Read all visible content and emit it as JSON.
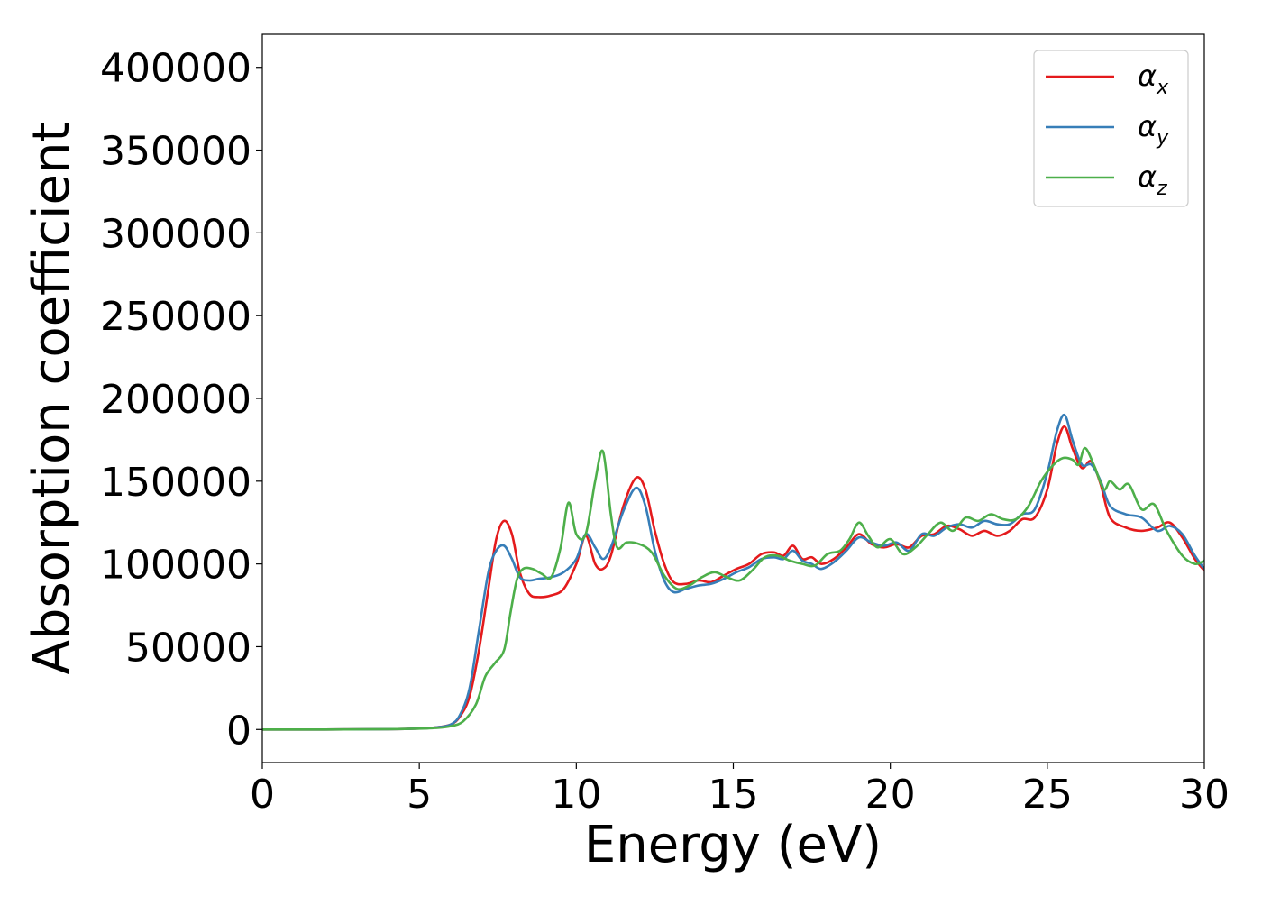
{
  "chart_data": {
    "type": "line",
    "xlabel": "Energy (eV)",
    "ylabel": "Absorption coefficient",
    "xlim": [
      0,
      30
    ],
    "ylim": [
      -20000,
      420000
    ],
    "xticks": [
      0,
      5,
      10,
      15,
      20,
      25,
      30
    ],
    "yticks": [
      0,
      50000,
      100000,
      150000,
      200000,
      250000,
      300000,
      350000,
      400000
    ],
    "grid": false,
    "legend_position": "top-right",
    "series": [
      {
        "name": "α",
        "subscript": "x",
        "color": "#e41a1c",
        "x": [
          0,
          2,
          4,
          5,
          5.5,
          6,
          6.3,
          6.6,
          6.9,
          7.2,
          7.45,
          7.7,
          7.95,
          8.2,
          8.5,
          8.8,
          9.2,
          9.6,
          10.0,
          10.3,
          10.6,
          10.85,
          11.1,
          11.5,
          11.9,
          12.2,
          12.5,
          12.8,
          13.1,
          13.5,
          13.9,
          14.3,
          14.7,
          15.1,
          15.5,
          15.9,
          16.3,
          16.6,
          16.9,
          17.2,
          17.5,
          17.8,
          18.2,
          18.6,
          19.0,
          19.4,
          19.8,
          20.2,
          20.6,
          21.0,
          21.4,
          21.8,
          22.2,
          22.6,
          23.0,
          23.4,
          23.8,
          24.2,
          24.6,
          25.0,
          25.3,
          25.55,
          25.8,
          26.1,
          26.4,
          26.7,
          27.0,
          27.5,
          28.0,
          28.5,
          28.9,
          29.3,
          29.7,
          30.0
        ],
        "y": [
          0,
          0,
          200,
          600,
          1200,
          3000,
          8000,
          20000,
          48000,
          85000,
          115000,
          126000,
          118000,
          95000,
          82000,
          80000,
          81000,
          85000,
          100000,
          117000,
          100000,
          97000,
          105000,
          135000,
          152000,
          145000,
          120000,
          100000,
          89000,
          88000,
          90000,
          89000,
          93000,
          97000,
          100000,
          106000,
          107000,
          105000,
          111000,
          103000,
          104000,
          100000,
          103000,
          110000,
          118000,
          112000,
          110000,
          112000,
          110000,
          117000,
          118000,
          123000,
          121000,
          117000,
          120000,
          117000,
          120000,
          127000,
          128000,
          145000,
          172000,
          183000,
          170000,
          158000,
          162000,
          148000,
          128000,
          122000,
          120000,
          122000,
          125000,
          116000,
          103000,
          96000
        ]
      },
      {
        "name": "α",
        "subscript": "y",
        "color": "#377eb8",
        "x": [
          0,
          2,
          4,
          5,
          5.5,
          6,
          6.3,
          6.6,
          6.9,
          7.2,
          7.45,
          7.7,
          7.95,
          8.2,
          8.5,
          8.8,
          9.2,
          9.6,
          10.0,
          10.3,
          10.6,
          10.85,
          11.1,
          11.5,
          11.9,
          12.2,
          12.5,
          12.8,
          13.1,
          13.5,
          13.9,
          14.3,
          14.7,
          15.1,
          15.5,
          15.9,
          16.3,
          16.6,
          16.9,
          17.2,
          17.5,
          17.8,
          18.2,
          18.6,
          19.0,
          19.4,
          19.8,
          20.2,
          20.6,
          21.0,
          21.4,
          21.8,
          22.2,
          22.6,
          23.0,
          23.4,
          23.8,
          24.2,
          24.6,
          25.0,
          25.3,
          25.55,
          25.8,
          26.1,
          26.4,
          26.7,
          27.0,
          27.5,
          28.0,
          28.5,
          28.9,
          29.3,
          29.7,
          30.0
        ],
        "y": [
          0,
          0,
          200,
          600,
          1200,
          3000,
          9000,
          25000,
          60000,
          95000,
          108000,
          111000,
          103000,
          92000,
          90000,
          91000,
          92000,
          95000,
          103000,
          118000,
          110000,
          103000,
          110000,
          132000,
          146000,
          135000,
          108000,
          90000,
          83000,
          85000,
          87000,
          88000,
          91000,
          95000,
          98000,
          103000,
          104000,
          103000,
          108000,
          102000,
          100000,
          97000,
          101000,
          108000,
          116000,
          113000,
          111000,
          113000,
          108000,
          118000,
          117000,
          122000,
          124000,
          122000,
          126000,
          124000,
          124000,
          130000,
          133000,
          155000,
          180000,
          190000,
          175000,
          160000,
          160000,
          150000,
          135000,
          130000,
          128000,
          120000,
          123000,
          118000,
          105000,
          97000
        ]
      },
      {
        "name": "α",
        "subscript": "z",
        "color": "#4daf4a",
        "x": [
          0,
          2,
          4,
          5,
          5.5,
          6,
          6.4,
          6.8,
          7.1,
          7.4,
          7.7,
          7.9,
          8.1,
          8.3,
          8.6,
          8.9,
          9.2,
          9.5,
          9.75,
          10.0,
          10.3,
          10.6,
          10.85,
          11.1,
          11.3,
          11.6,
          12.0,
          12.4,
          12.8,
          13.2,
          13.6,
          14.0,
          14.4,
          14.8,
          15.2,
          15.6,
          16.0,
          16.4,
          16.8,
          17.2,
          17.6,
          18.0,
          18.4,
          18.7,
          19.0,
          19.3,
          19.6,
          20.0,
          20.4,
          20.8,
          21.2,
          21.6,
          22.0,
          22.4,
          22.8,
          23.2,
          23.6,
          24.0,
          24.4,
          24.8,
          25.2,
          25.5,
          25.8,
          26.0,
          26.2,
          26.5,
          26.8,
          27.0,
          27.3,
          27.6,
          28.0,
          28.4,
          28.8,
          29.3,
          29.7,
          30.0
        ],
        "y": [
          0,
          0,
          200,
          500,
          900,
          2000,
          5000,
          15000,
          32000,
          40000,
          48000,
          70000,
          90000,
          97000,
          97000,
          94000,
          92000,
          110000,
          137000,
          118000,
          118000,
          150000,
          168000,
          130000,
          110000,
          113000,
          112000,
          107000,
          93000,
          85000,
          87000,
          92000,
          95000,
          92000,
          90000,
          96000,
          104000,
          105000,
          102000,
          100000,
          99000,
          106000,
          108000,
          115000,
          125000,
          117000,
          110000,
          115000,
          106000,
          110000,
          118000,
          125000,
          120000,
          128000,
          126000,
          130000,
          127000,
          127000,
          135000,
          150000,
          160000,
          164000,
          163000,
          160000,
          170000,
          159000,
          145000,
          150000,
          145000,
          148000,
          133000,
          136000,
          120000,
          105000,
          100000,
          102000
        ]
      }
    ]
  }
}
